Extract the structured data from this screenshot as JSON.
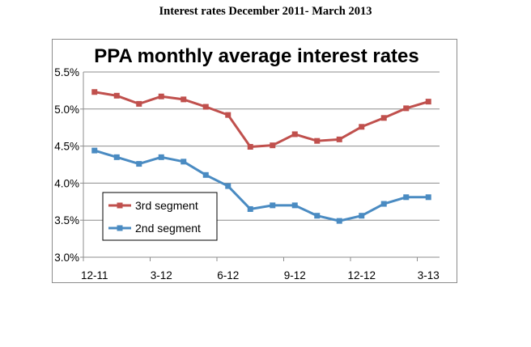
{
  "page_title": "Interest rates December 2011- March 2013",
  "chart_data": {
    "type": "line",
    "title": "PPA monthly average interest rates",
    "x": [
      "12-11",
      "1-12",
      "2-12",
      "3-12",
      "4-12",
      "5-12",
      "6-12",
      "7-12",
      "8-12",
      "9-12",
      "10-12",
      "11-12",
      "12-12",
      "1-13",
      "2-13",
      "3-13"
    ],
    "x_tick_labels": [
      "12-11",
      "3-12",
      "6-12",
      "9-12",
      "12-12",
      "3-13"
    ],
    "y_tick_labels": [
      "3.0%",
      "3.5%",
      "4.0%",
      "4.5%",
      "5.0%",
      "5.5%"
    ],
    "ylim": [
      3.0,
      5.5
    ],
    "grid": true,
    "legend_position": "lower-left",
    "series": [
      {
        "name": "3rd segment",
        "color": "#c0504d",
        "values": [
          5.23,
          5.18,
          5.07,
          5.17,
          5.13,
          5.03,
          4.92,
          4.49,
          4.51,
          4.66,
          4.57,
          4.59,
          4.76,
          4.88,
          5.01,
          5.1
        ]
      },
      {
        "name": "2nd segment",
        "color": "#4a8bc2",
        "values": [
          4.44,
          4.35,
          4.26,
          4.35,
          4.29,
          4.11,
          3.96,
          3.65,
          3.7,
          3.7,
          3.56,
          3.49,
          3.56,
          3.72,
          3.81,
          3.81
        ]
      }
    ]
  }
}
